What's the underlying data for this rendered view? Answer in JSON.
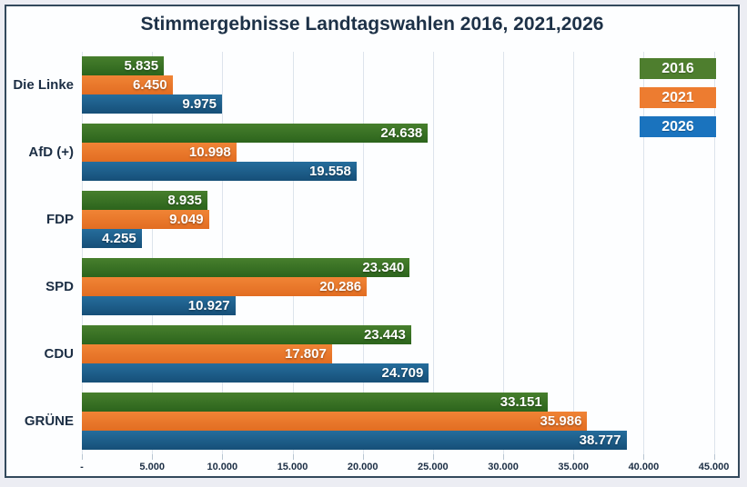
{
  "chart_data": {
    "type": "bar",
    "orientation": "horizontal",
    "title": "Stimmergebnisse Landtagswahlen 2016, 2021,2026",
    "categories": [
      "Die Linke",
      "AfD (+)",
      "FDP",
      "SPD",
      "CDU",
      "GRÜNE"
    ],
    "series": [
      {
        "name": "2016",
        "color_top": "#477f2d",
        "color_bottom": "#2c641c",
        "legend_color": "#4e7e2e",
        "values": [
          5835,
          24638,
          8935,
          23340,
          23443,
          33151
        ],
        "labels": [
          "5.835",
          "24.638",
          "8.935",
          "23.340",
          "23.443",
          "33.151"
        ]
      },
      {
        "name": "2021",
        "color_top": "#f08435",
        "color_bottom": "#e26d22",
        "legend_color": "#ed7c30",
        "values": [
          6450,
          10998,
          9049,
          20286,
          17807,
          35986
        ],
        "labels": [
          "6.450",
          "10.998",
          "9.049",
          "20.286",
          "17.807",
          "35.986"
        ]
      },
      {
        "name": "2026",
        "color_top": "#256d9c",
        "color_bottom": "#164f78",
        "legend_color": "#1a73be",
        "values": [
          9975,
          19558,
          4255,
          10927,
          24709,
          38777
        ],
        "labels": [
          "9.975",
          "19.558",
          "4.255",
          "10.927",
          "24.709",
          "38.777"
        ]
      }
    ],
    "x_ticks": {
      "labels": [
        "-",
        "5.000",
        "10.000",
        "15.000",
        "20.000",
        "25.000",
        "30.000",
        "35.000",
        "40.000",
        "45.000"
      ],
      "interval": 5000
    },
    "xlim": [
      0,
      46000
    ],
    "grid": true,
    "legend_position": "top-right"
  },
  "style": {
    "page_background": "#ecedf3",
    "chart_background": "#fdfeff",
    "chart_border": "#33495c",
    "text_color": "#1c2e44",
    "gridline_color": "#dde4ec"
  }
}
